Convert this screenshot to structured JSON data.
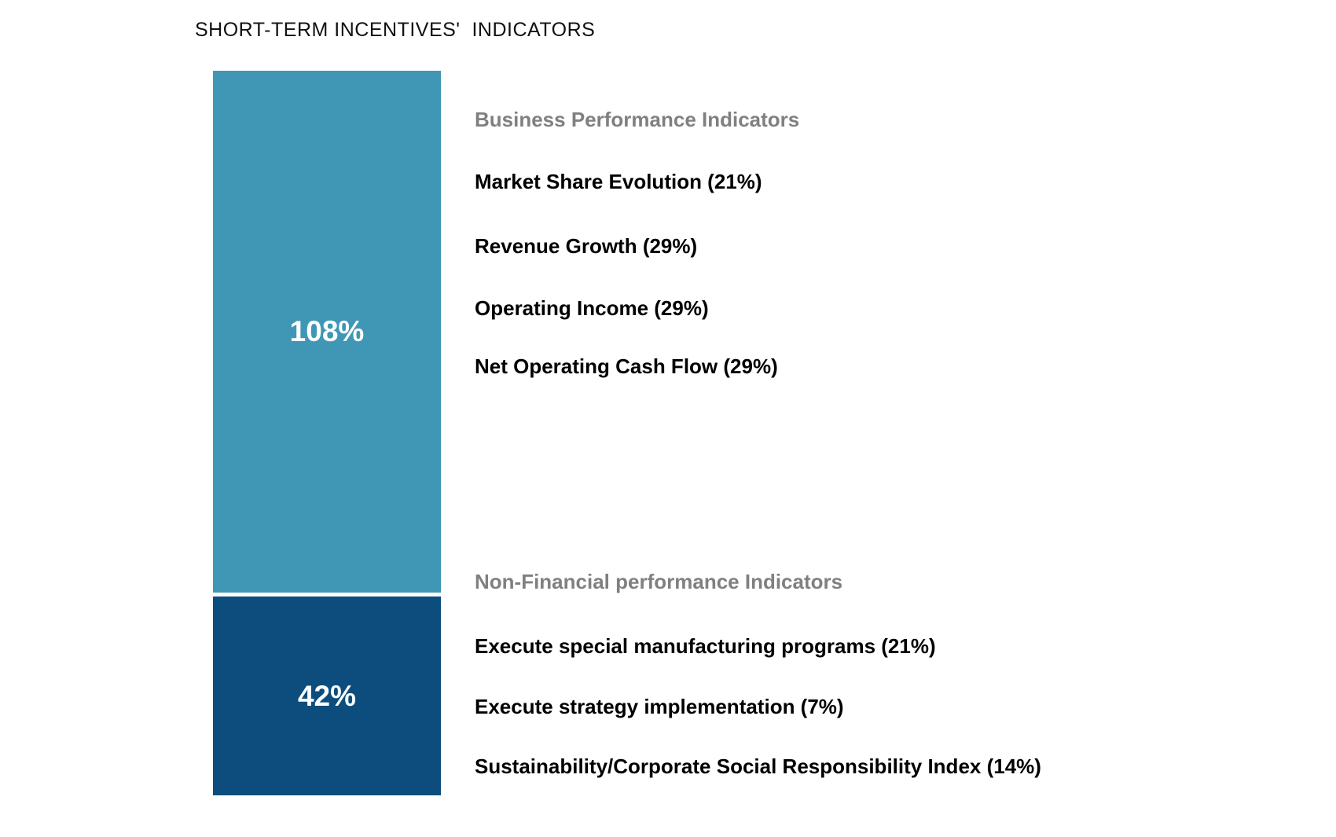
{
  "page": {
    "background_color": "#ffffff",
    "text_color": "#000000",
    "heading_gray": "#808080"
  },
  "chart_data": {
    "type": "bar",
    "subtype": "stacked-single-column",
    "title": "SHORT-TERM INCENTIVES'  INDICATORS",
    "value_unit": "%",
    "legend_position": "right",
    "grid": false,
    "segments": [
      {
        "name": "Business Performance Indicators",
        "value": 108,
        "label": "108%",
        "color": "#3F97B5",
        "label_color": "#ffffff",
        "items": [
          "Market Share Evolution (21%)",
          "Revenue Growth (29%)",
          "Operating Income (29%)",
          "Net Operating Cash Flow (29%)"
        ]
      },
      {
        "name": "Non-Financial performance Indicators",
        "value": 42,
        "label": "42%",
        "color": "#0D4D7E",
        "label_color": "#ffffff",
        "items": [
          "Execute special manufacturing programs (21%)",
          "Execute strategy implementation (7%)",
          "Sustainability/Corporate Social Responsibility Index (14%)"
        ]
      }
    ]
  }
}
